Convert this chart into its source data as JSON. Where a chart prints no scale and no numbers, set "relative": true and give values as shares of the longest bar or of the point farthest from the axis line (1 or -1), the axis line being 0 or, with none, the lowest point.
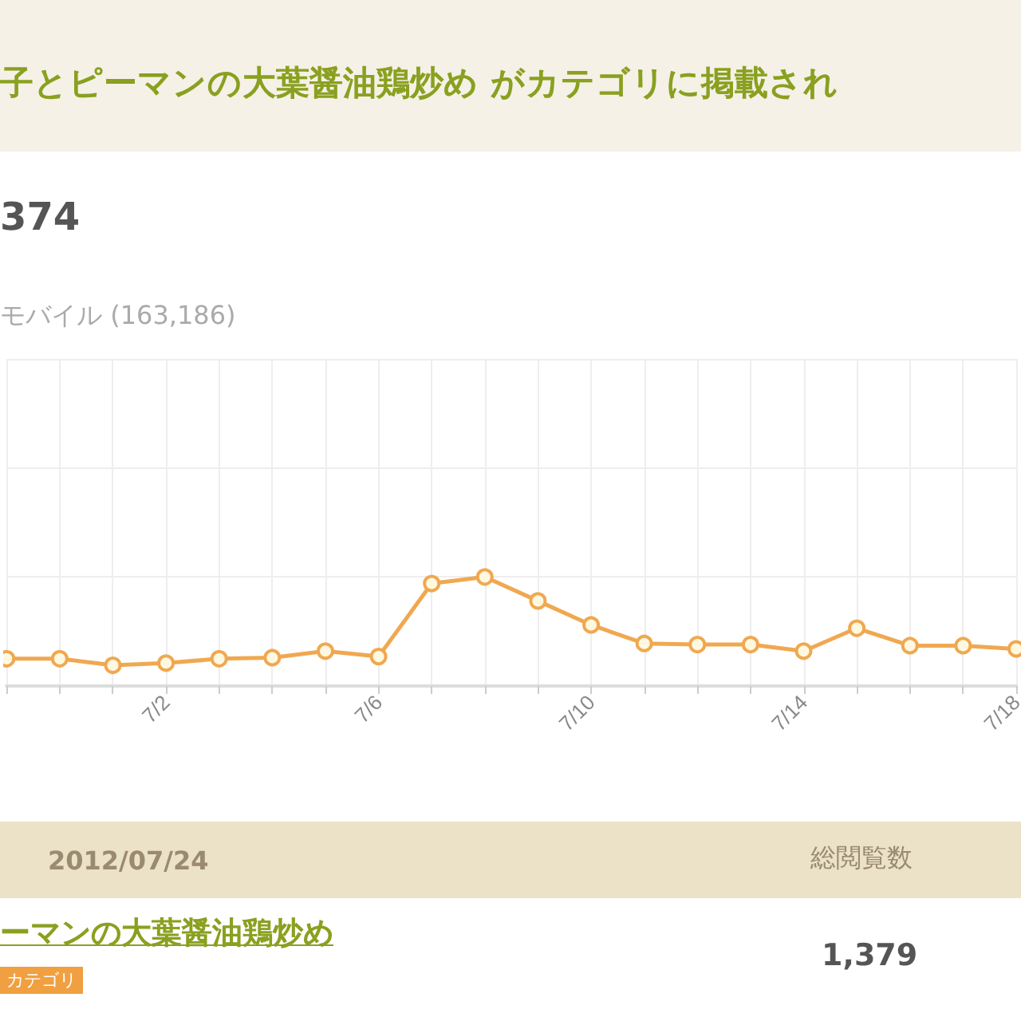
{
  "chart_data": {
    "type": "line",
    "title": "子とピーマンの大葉醤油鶏炒め がカテゴリに掲載され",
    "subtitle": "374",
    "annotations": [
      "モバイル (163,186)",
      "2012/07/24",
      "総閲覧数",
      "ーマンの大葉醤油鶏炒め",
      "カテゴリ",
      "1,379"
    ],
    "categories": [
      null,
      null,
      null,
      "7/2",
      null,
      null,
      null,
      "7/6",
      null,
      null,
      null,
      "7/10",
      null,
      null,
      null,
      "7/14",
      null,
      null,
      null,
      "7/18"
    ],
    "relative": true,
    "series": [
      {
        "color": "#f0a850",
        "values": [
          0.25,
          0.25,
          0.19,
          0.21,
          0.25,
          0.26,
          0.32,
          0.27,
          0.94,
          1,
          0.78,
          0.56,
          0.39,
          0.38,
          0.38,
          0.32,
          0.53,
          0.37,
          0.37,
          0.34
        ]
      }
    ],
    "grid": true,
    "marker": "circle",
    "line_style": "solid"
  }
}
